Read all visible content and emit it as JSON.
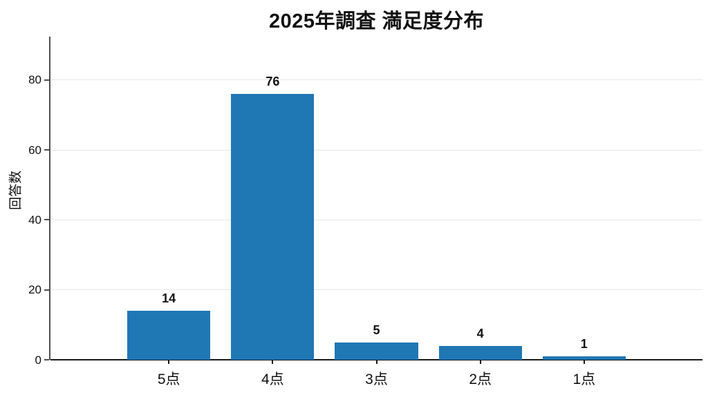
{
  "chart_data": {
    "type": "bar",
    "title": "2025年調査 満足度分布",
    "categories": [
      "5点",
      "4点",
      "3点",
      "2点",
      "1点"
    ],
    "values": [
      14,
      76,
      5,
      4,
      1
    ],
    "xlabel": "",
    "ylabel": "回答数",
    "yticks": [
      0,
      20,
      40,
      60,
      80
    ],
    "ylim": [
      0,
      92.4
    ],
    "grid": "horizontal-light",
    "legend": "none",
    "value_labels_shown": true,
    "colors": {
      "bar": "#1f77b4",
      "grid": "#e7e7e7",
      "axis_left": "#4d4d4d",
      "axis_bottom": "#1a1a1a",
      "text": "#111111"
    }
  }
}
